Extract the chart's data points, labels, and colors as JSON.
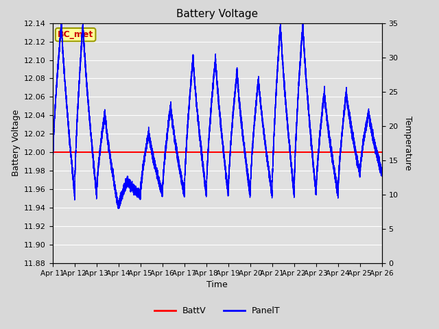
{
  "title": "Battery Voltage",
  "xlabel": "Time",
  "ylabel_left": "Battery Voltage",
  "ylabel_right": "Temperature",
  "ylim_left": [
    11.88,
    12.14
  ],
  "ylim_right": [
    0,
    35
  ],
  "yticks_left": [
    11.88,
    11.9,
    11.92,
    11.94,
    11.96,
    11.98,
    12.0,
    12.02,
    12.04,
    12.06,
    12.08,
    12.1,
    12.12,
    12.14
  ],
  "yticks_right": [
    0,
    5,
    10,
    15,
    20,
    25,
    30,
    35
  ],
  "batt_v": 12.0,
  "fig_bg_color": "#d8d8d8",
  "plot_bg_color": "#e0e0e0",
  "grid_color": "white",
  "annotation_text": "BC_met",
  "annotation_bg": "#ffff99",
  "annotation_border": "#999900",
  "annotation_text_color": "#cc0000",
  "batt_line_color": "red",
  "panel_line_color": "blue",
  "x_labels": [
    "Apr 11",
    "Apr 12",
    "Apr 13",
    "Apr 14",
    "Apr 15",
    "Apr 16",
    "Apr 17",
    "Apr 18",
    "Apr 19",
    "Apr 20",
    "Apr 21",
    "Apr 22",
    "Apr 23",
    "Apr 24",
    "Apr 25",
    "Apr 26"
  ]
}
